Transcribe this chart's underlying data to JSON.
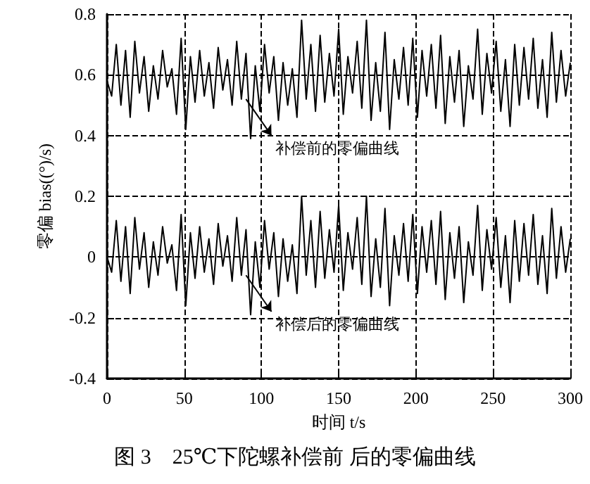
{
  "chart_data": {
    "type": "line",
    "title": "图 3　25℃下陀螺补偿前 后的零偏曲线",
    "xlabel": "时间 t/s",
    "ylabel": "零偏 bias((°)/s)",
    "x": [
      0,
      3,
      6,
      9,
      12,
      15,
      18,
      21,
      24,
      27,
      30,
      33,
      36,
      39,
      42,
      45,
      48,
      51,
      54,
      57,
      60,
      63,
      66,
      69,
      72,
      75,
      78,
      81,
      84,
      87,
      90,
      93,
      96,
      99,
      102,
      105,
      108,
      111,
      114,
      117,
      120,
      123,
      126,
      129,
      132,
      135,
      138,
      141,
      144,
      147,
      150,
      153,
      156,
      159,
      162,
      165,
      168,
      171,
      174,
      177,
      180,
      183,
      186,
      189,
      192,
      195,
      198,
      201,
      204,
      207,
      210,
      213,
      216,
      219,
      222,
      225,
      228,
      231,
      234,
      237,
      240,
      243,
      246,
      249,
      252,
      255,
      258,
      261,
      264,
      267,
      270,
      273,
      276,
      279,
      282,
      285,
      288,
      291,
      294,
      297,
      300
    ],
    "series": [
      {
        "color": "#000000",
        "values": [
          0.58,
          0.53,
          0.7,
          0.5,
          0.68,
          0.46,
          0.71,
          0.54,
          0.66,
          0.48,
          0.63,
          0.52,
          0.68,
          0.56,
          0.62,
          0.47,
          0.72,
          0.42,
          0.66,
          0.51,
          0.68,
          0.53,
          0.64,
          0.49,
          0.69,
          0.55,
          0.65,
          0.5,
          0.71,
          0.52,
          0.67,
          0.39,
          0.63,
          0.48,
          0.7,
          0.54,
          0.66,
          0.45,
          0.64,
          0.5,
          0.62,
          0.46,
          0.78,
          0.52,
          0.7,
          0.48,
          0.73,
          0.51,
          0.67,
          0.53,
          0.75,
          0.47,
          0.66,
          0.54,
          0.71,
          0.49,
          0.78,
          0.45,
          0.64,
          0.48,
          0.74,
          0.42,
          0.65,
          0.52,
          0.69,
          0.5,
          0.72,
          0.46,
          0.68,
          0.53,
          0.7,
          0.49,
          0.73,
          0.44,
          0.66,
          0.51,
          0.68,
          0.43,
          0.63,
          0.52,
          0.75,
          0.47,
          0.67,
          0.54,
          0.71,
          0.48,
          0.65,
          0.43,
          0.7,
          0.5,
          0.69,
          0.52,
          0.72,
          0.49,
          0.65,
          0.46,
          0.74,
          0.51,
          0.68,
          0.53,
          0.64
        ]
      },
      {
        "color": "#000000",
        "values": [
          0,
          -0.05,
          0.12,
          -0.08,
          0.1,
          -0.12,
          0.13,
          -0.04,
          0.08,
          -0.1,
          0.05,
          -0.06,
          0.1,
          -0.02,
          0.04,
          -0.11,
          0.14,
          -0.16,
          0.08,
          -0.07,
          0.1,
          -0.05,
          0.06,
          -0.09,
          0.11,
          -0.03,
          0.07,
          -0.08,
          0.13,
          -0.06,
          0.09,
          -0.19,
          0.05,
          -0.1,
          0.12,
          -0.04,
          0.08,
          -0.13,
          0.06,
          -0.08,
          0.04,
          -0.12,
          0.2,
          -0.06,
          0.12,
          -0.1,
          0.15,
          -0.07,
          0.09,
          -0.05,
          0.17,
          -0.11,
          0.08,
          -0.04,
          0.13,
          -0.09,
          0.2,
          -0.13,
          0.06,
          -0.1,
          0.16,
          -0.16,
          0.07,
          -0.06,
          0.11,
          -0.08,
          0.14,
          -0.12,
          0.1,
          -0.05,
          0.12,
          -0.09,
          0.15,
          -0.14,
          0.08,
          -0.07,
          0.1,
          -0.15,
          0.05,
          -0.06,
          0.17,
          -0.11,
          0.09,
          -0.04,
          0.13,
          -0.1,
          0.07,
          -0.15,
          0.12,
          -0.08,
          0.11,
          -0.06,
          0.14,
          -0.09,
          0.07,
          -0.12,
          0.16,
          -0.07,
          0.1,
          -0.05,
          0.06
        ]
      }
    ],
    "annotations": [
      {
        "text": "补偿前的零偏曲线",
        "x": 90,
        "y": 0.52
      },
      {
        "text": "补偿后的零偏曲线",
        "x": 90,
        "y": -0.06
      }
    ],
    "xlim": [
      0,
      300
    ],
    "xticks": [
      0,
      50,
      100,
      150,
      200,
      250,
      300
    ],
    "ylim": [
      -0.4,
      0.8
    ],
    "yticks": [
      -0.4,
      -0.2,
      0,
      0.2,
      0.4,
      0.6,
      0.8
    ],
    "grid": true,
    "line_style": "solid"
  }
}
